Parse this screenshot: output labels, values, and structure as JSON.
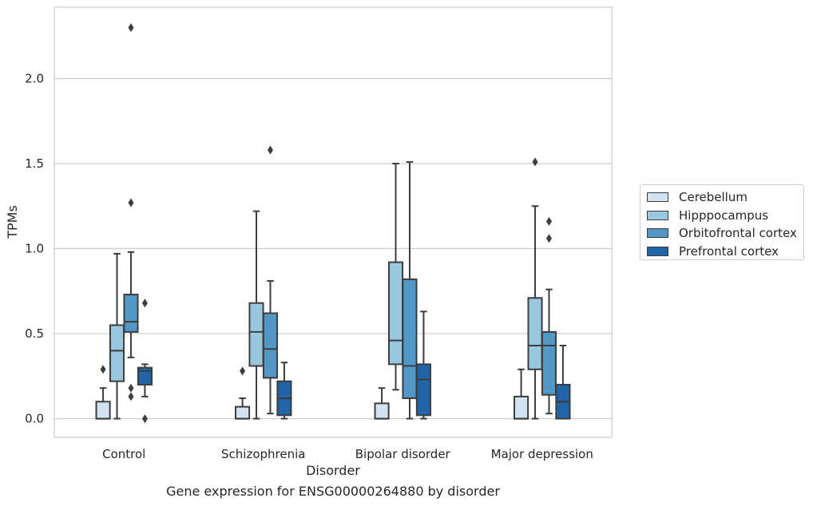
{
  "caption": "Gene expression for ENSG00000264880 by disorder",
  "chart_data": {
    "type": "box",
    "xlabel": "Disorder",
    "ylabel": "TPMs",
    "ylim": [
      -0.11,
      2.42
    ],
    "yticks": [
      "0.0",
      "0.5",
      "1.0",
      "1.5",
      "2.0"
    ],
    "grid": "horizontal",
    "legend_position": "right",
    "categories": [
      "Control",
      "Schizophrenia",
      "Bipolar disorder",
      "Major depression"
    ],
    "series": [
      {
        "name": "Cerebellum",
        "color": "#d1e2f1",
        "boxes": [
          {
            "whisker_low": 0.0,
            "q1": 0.0,
            "median": 0.0,
            "q3": 0.1,
            "whisker_high": 0.18,
            "outliers": [
              0.29
            ]
          },
          {
            "whisker_low": 0.0,
            "q1": 0.0,
            "median": 0.0,
            "q3": 0.07,
            "whisker_high": 0.12,
            "outliers": [
              0.28
            ]
          },
          {
            "whisker_low": 0.0,
            "q1": 0.0,
            "median": 0.0,
            "q3": 0.09,
            "whisker_high": 0.18,
            "outliers": []
          },
          {
            "whisker_low": 0.0,
            "q1": 0.0,
            "median": 0.0,
            "q3": 0.13,
            "whisker_high": 0.29,
            "outliers": []
          }
        ]
      },
      {
        "name": "Hipppocampus",
        "color": "#9ac7e0",
        "boxes": [
          {
            "whisker_low": 0.0,
            "q1": 0.22,
            "median": 0.4,
            "q3": 0.55,
            "whisker_high": 0.97,
            "outliers": []
          },
          {
            "whisker_low": 0.0,
            "q1": 0.31,
            "median": 0.51,
            "q3": 0.68,
            "whisker_high": 1.22,
            "outliers": []
          },
          {
            "whisker_low": 0.17,
            "q1": 0.32,
            "median": 0.46,
            "q3": 0.92,
            "whisker_high": 1.5,
            "outliers": []
          },
          {
            "whisker_low": 0.0,
            "q1": 0.29,
            "median": 0.43,
            "q3": 0.71,
            "whisker_high": 1.25,
            "outliers": [
              1.51
            ]
          }
        ]
      },
      {
        "name": "Orbitofrontal cortex",
        "color": "#5297c6",
        "boxes": [
          {
            "whisker_low": 0.36,
            "q1": 0.51,
            "median": 0.57,
            "q3": 0.73,
            "whisker_high": 0.98,
            "outliers": [
              1.27,
              2.3,
              0.18,
              0.13
            ]
          },
          {
            "whisker_low": 0.03,
            "q1": 0.24,
            "median": 0.41,
            "q3": 0.62,
            "whisker_high": 0.81,
            "outliers": [
              1.58
            ]
          },
          {
            "whisker_low": 0.0,
            "q1": 0.12,
            "median": 0.31,
            "q3": 0.82,
            "whisker_high": 1.51,
            "outliers": []
          },
          {
            "whisker_low": 0.03,
            "q1": 0.14,
            "median": 0.43,
            "q3": 0.51,
            "whisker_high": 0.76,
            "outliers": [
              1.06,
              1.16
            ]
          }
        ]
      },
      {
        "name": "Prefrontal cortex",
        "color": "#2264a8",
        "boxes": [
          {
            "whisker_low": 0.13,
            "q1": 0.2,
            "median": 0.28,
            "q3": 0.3,
            "whisker_high": 0.32,
            "outliers": [
              0.68,
              0.0
            ]
          },
          {
            "whisker_low": 0.0,
            "q1": 0.02,
            "median": 0.12,
            "q3": 0.22,
            "whisker_high": 0.33,
            "outliers": []
          },
          {
            "whisker_low": 0.0,
            "q1": 0.02,
            "median": 0.23,
            "q3": 0.32,
            "whisker_high": 0.63,
            "outliers": []
          },
          {
            "whisker_low": 0.0,
            "q1": 0.0,
            "median": 0.1,
            "q3": 0.2,
            "whisker_high": 0.43,
            "outliers": []
          }
        ]
      }
    ]
  }
}
